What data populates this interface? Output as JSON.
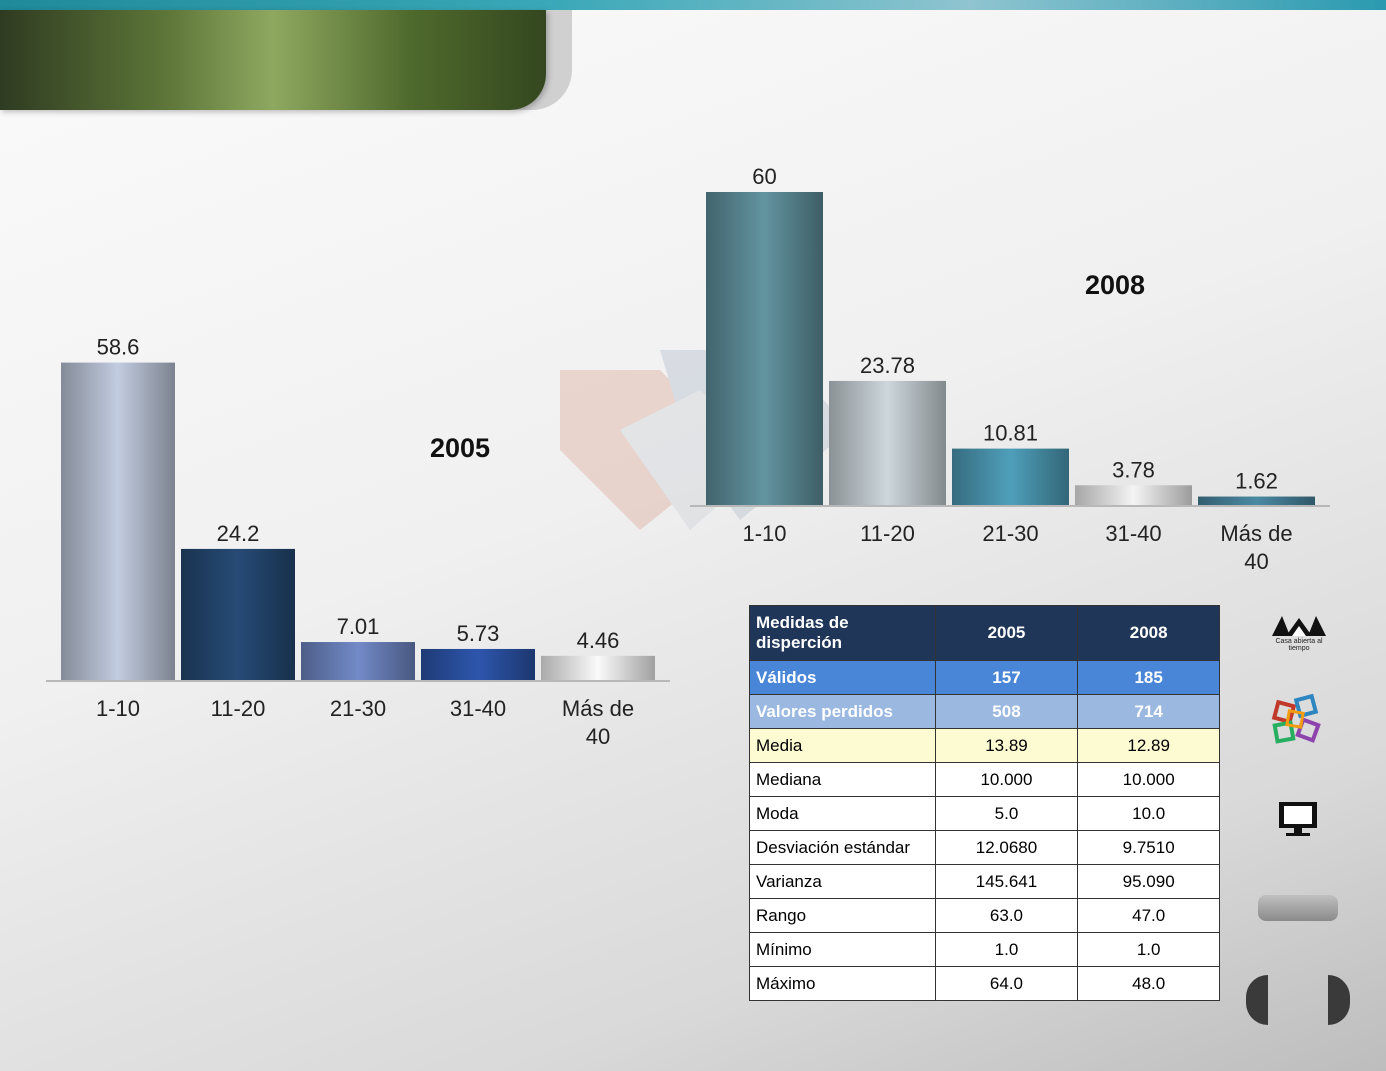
{
  "chart_data": [
    {
      "type": "bar",
      "title": "2005",
      "categories": [
        "1-10",
        "11-20",
        "21-30",
        "31-40",
        "Más de 40"
      ],
      "values": [
        58.6,
        24.2,
        7.01,
        5.73,
        4.46
      ],
      "value_labels": [
        "58.6",
        "24.2",
        "7.01",
        "5.73",
        "4.46"
      ],
      "colors": [
        "#9ba3b3",
        "#1e3c5e",
        "#5b6ea0",
        "#24458a",
        "#c8c8c8"
      ],
      "ylim": [
        0,
        60
      ],
      "grid": false,
      "legend": "none"
    },
    {
      "type": "bar",
      "title": "2008",
      "categories": [
        "1-10",
        "11-20",
        "21-30",
        "31-40",
        "Más de 40"
      ],
      "values": [
        60,
        23.78,
        10.81,
        3.78,
        1.62
      ],
      "value_labels": [
        "60",
        "23.78",
        "10.81",
        "3.78",
        "1.62"
      ],
      "colors": [
        "#4e7680",
        "#a4acb0",
        "#3f7f95",
        "#c3c3c3",
        "#3c6e82"
      ],
      "ylim": [
        0,
        60
      ],
      "grid": false,
      "legend": "none"
    }
  ],
  "table": {
    "header": [
      "Medidas de disperción",
      "2005",
      "2008"
    ],
    "rows": [
      {
        "style": "valid",
        "cells": [
          "Válidos",
          "157",
          "185"
        ]
      },
      {
        "style": "lost",
        "cells": [
          "Valores perdidos",
          "508",
          "714"
        ]
      },
      {
        "style": "media",
        "cells": [
          "Media",
          "13.89",
          "12.89"
        ]
      },
      {
        "style": "",
        "cells": [
          "Mediana",
          "10.000",
          "10.000"
        ]
      },
      {
        "style": "",
        "cells": [
          "Moda",
          "5.0",
          "10.0"
        ]
      },
      {
        "style": "",
        "cells": [
          "Desviación estándar",
          "12.0680",
          "9.7510"
        ]
      },
      {
        "style": "",
        "cells": [
          "Varianza",
          "145.641",
          "95.090"
        ]
      },
      {
        "style": "",
        "cells": [
          "Rango",
          "63.0",
          "47.0"
        ]
      },
      {
        "style": "",
        "cells": [
          "Mínimo",
          "1.0",
          "1.0"
        ]
      },
      {
        "style": "",
        "cells": [
          "Máximo",
          "64.0",
          "48.0"
        ]
      }
    ]
  },
  "sidebar": {
    "logo_text": "Casa abierta al tiempo",
    "icons": [
      "uam-logo-icon",
      "cubes-icon",
      "monitor-icon"
    ]
  }
}
